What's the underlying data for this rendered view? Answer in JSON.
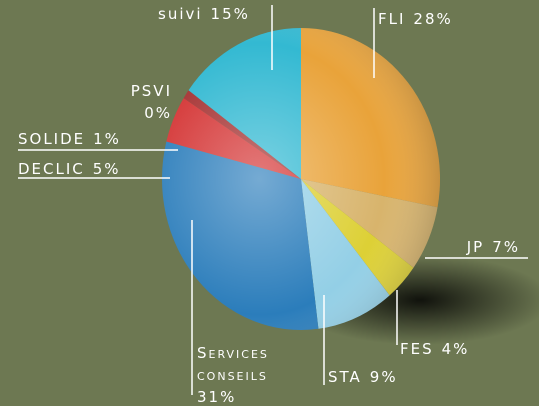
{
  "chart_data": {
    "type": "pie",
    "categories": [
      "FLI",
      "JP",
      "FES",
      "STA",
      "Services conseils",
      "DECLIC",
      "SOLIDE",
      "PSVI",
      "suivi"
    ],
    "values": [
      28,
      7,
      4,
      9,
      31,
      5,
      1,
      0,
      15
    ],
    "value_labels": [
      "28%",
      "7%",
      "4%",
      "9%",
      "31%",
      "5%",
      "1%",
      "0%",
      "15%"
    ],
    "colors": [
      "#e9a33a",
      "#d8b46c",
      "#ddd035",
      "#93cfe6",
      "#2b7dbb",
      "#d43434",
      "#a53232",
      "#888888",
      "#33b9d2"
    ]
  }
}
